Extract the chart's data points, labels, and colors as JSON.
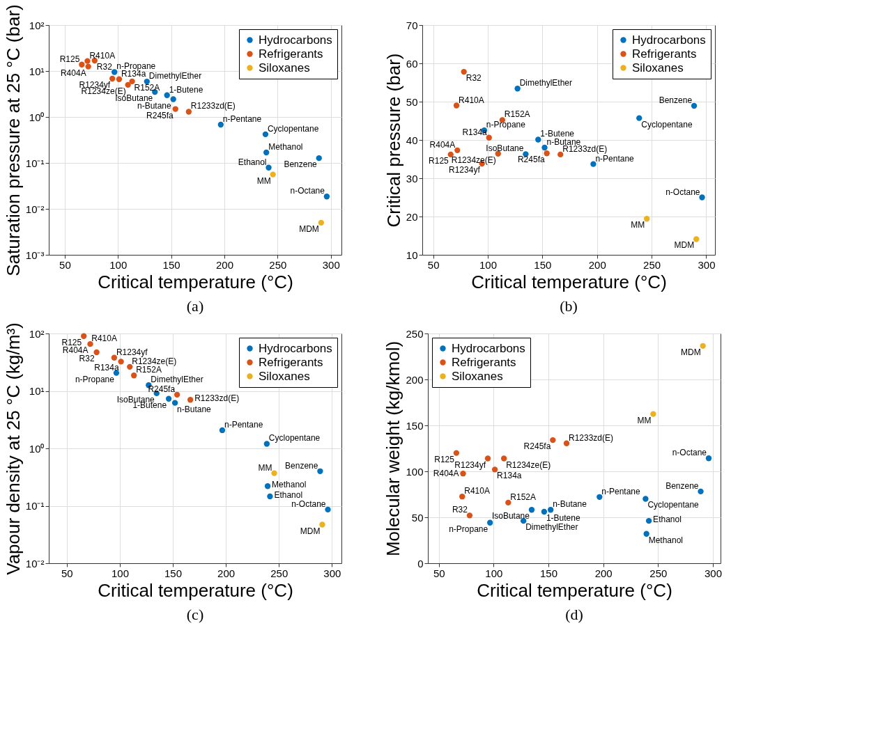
{
  "chart_data": [
    {
      "type": "scatter",
      "xlabel": "Critical temperature (°C)",
      "ylabel": "Saturation pressure at 25 °C (bar)",
      "log": "y",
      "xlim": [
        35,
        310
      ],
      "xticks": [
        50,
        100,
        150,
        200,
        250,
        300
      ],
      "ylim": [
        0.001,
        100
      ],
      "yticks": [
        {
          "value": 0.001,
          "label": "10⁻³"
        },
        {
          "value": 0.01,
          "label": "10⁻²"
        },
        {
          "value": 0.1,
          "label": "10⁻¹"
        },
        {
          "value": 1,
          "label": "10⁰"
        },
        {
          "value": 10,
          "label": "10¹"
        },
        {
          "value": 100,
          "label": "10²"
        }
      ],
      "grid": true,
      "legend": "top right",
      "marker": "circle",
      "series": [
        {
          "name": "Hydrocarbons",
          "color": "#0072bd",
          "x": [
            96.7,
            127.2,
            134.7,
            146.1,
            152.0,
            196.6,
            238.6,
            239.4,
            241.6,
            288.9,
            296.2
          ],
          "values": [
            9.5,
            5.9,
            3.5,
            2.97,
            2.43,
            0.68,
            0.42,
            0.169,
            0.079,
            0.127,
            0.0186
          ]
        },
        {
          "name": "Refrigerants",
          "color": "#d95319",
          "x": [
            66.0,
            71.3,
            72.1,
            78.1,
            94.7,
            101.1,
            109.4,
            113.3,
            154.0,
            166.5
          ],
          "values": [
            13.8,
            16.5,
            12.5,
            16.9,
            6.8,
            6.65,
            5.0,
            5.96,
            1.49,
            1.3
          ]
        },
        {
          "name": "Siloxanes",
          "color": "#edb120",
          "x": [
            245.6,
            290.9
          ],
          "values": [
            0.056,
            0.005
          ]
        }
      ],
      "annotations": [
        {
          "text": "n-Propane",
          "x": 96.7,
          "y": 9.5
        },
        {
          "text": "DimethylEther",
          "x": 127.2,
          "y": 5.9
        },
        {
          "text": "IsoButane",
          "x": 134.7,
          "y": 3.5
        },
        {
          "text": "1-Butene",
          "x": 146.1,
          "y": 2.97
        },
        {
          "text": "n-Butane",
          "x": 152.0,
          "y": 2.43
        },
        {
          "text": "n-Pentane",
          "x": 196.6,
          "y": 0.68
        },
        {
          "text": "Cyclopentane",
          "x": 238.6,
          "y": 0.42
        },
        {
          "text": "Methanol",
          "x": 239.4,
          "y": 0.169
        },
        {
          "text": "Ethanol",
          "x": 241.6,
          "y": 0.079
        },
        {
          "text": "Benzene",
          "x": 288.9,
          "y": 0.127
        },
        {
          "text": "n-Octane",
          "x": 296.2,
          "y": 0.0186
        },
        {
          "text": "R125",
          "x": 66.0,
          "y": 13.8
        },
        {
          "text": "R410A",
          "x": 71.3,
          "y": 16.5
        },
        {
          "text": "R404A",
          "x": 72.1,
          "y": 12.5
        },
        {
          "text": "R32",
          "x": 78.1,
          "y": 16.9
        },
        {
          "text": "R1234yf",
          "x": 94.7,
          "y": 6.8
        },
        {
          "text": "R134a",
          "x": 101.1,
          "y": 6.65
        },
        {
          "text": "R1234ze(E)",
          "x": 109.4,
          "y": 5.0
        },
        {
          "text": "R152A",
          "x": 113.3,
          "y": 5.96
        },
        {
          "text": "R245fa",
          "x": 154.0,
          "y": 1.49
        },
        {
          "text": "R1233zd(E)",
          "x": 166.5,
          "y": 1.3
        },
        {
          "text": "MM",
          "x": 245.6,
          "y": 0.056
        },
        {
          "text": "MDM",
          "x": 290.9,
          "y": 0.005
        },
        "(a)"
      ]
    },
    {
      "type": "scatter",
      "xlabel": "Critical temperature (°C)",
      "ylabel": "Critical pressure (bar)",
      "xlim": [
        40,
        308
      ],
      "xticks": [
        50,
        100,
        150,
        200,
        250,
        300
      ],
      "ylim": [
        10,
        70
      ],
      "yticks": [
        10,
        20,
        30,
        40,
        50,
        60,
        70
      ],
      "grid": true,
      "legend": "top right",
      "marker": "circle",
      "series": [
        {
          "name": "Hydrocarbons",
          "color": "#0072bd",
          "x": [
            96.7,
            127.2,
            134.7,
            146.1,
            152.0,
            196.6,
            238.6,
            288.9,
            296.2
          ],
          "values": [
            42.5,
            53.4,
            36.3,
            40.1,
            38.0,
            33.7,
            45.7,
            48.9,
            25.0
          ]
        },
        {
          "name": "Refrigerants",
          "color": "#d95319",
          "x": [
            66.0,
            71.3,
            72.1,
            78.1,
            94.7,
            101.1,
            109.4,
            113.3,
            154.0,
            166.5
          ],
          "values": [
            36.2,
            49.0,
            37.3,
            57.8,
            33.8,
            40.6,
            36.4,
            45.2,
            36.5,
            36.2
          ]
        },
        {
          "name": "Siloxanes",
          "color": "#edb120",
          "x": [
            245.6,
            290.9
          ],
          "values": [
            19.4,
            14.1
          ]
        }
      ],
      "annotations": [
        {
          "text": "n-Propane",
          "x": 96.7,
          "y": 42.5
        },
        {
          "text": "DimethylEther",
          "x": 127.2,
          "y": 53.4
        },
        {
          "text": "IsoButane",
          "x": 134.7,
          "y": 36.3
        },
        {
          "text": "1-Butene",
          "x": 146.1,
          "y": 40.1
        },
        {
          "text": "n-Butane",
          "x": 152.0,
          "y": 38.0
        },
        {
          "text": "n-Pentane",
          "x": 196.6,
          "y": 33.7
        },
        {
          "text": "Cyclopentane",
          "x": 238.6,
          "y": 45.7
        },
        {
          "text": "Benzene",
          "x": 288.9,
          "y": 48.9
        },
        {
          "text": "n-Octane",
          "x": 296.2,
          "y": 25.0
        },
        {
          "text": "R125",
          "x": 66.0,
          "y": 36.2
        },
        {
          "text": "R410A",
          "x": 71.3,
          "y": 49.0
        },
        {
          "text": "R404A",
          "x": 72.1,
          "y": 37.3
        },
        {
          "text": "R32",
          "x": 78.1,
          "y": 57.8
        },
        {
          "text": "R1234yf",
          "x": 94.7,
          "y": 33.8
        },
        {
          "text": "R134a",
          "x": 101.1,
          "y": 40.6
        },
        {
          "text": "R1234ze(E)",
          "x": 109.4,
          "y": 36.4
        },
        {
          "text": "R152A",
          "x": 113.3,
          "y": 45.2
        },
        {
          "text": "R245fa",
          "x": 154.0,
          "y": 36.5
        },
        {
          "text": "R1233zd(E)",
          "x": 166.5,
          "y": 36.2
        },
        {
          "text": "MM",
          "x": 245.6,
          "y": 19.4
        },
        {
          "text": "MDM",
          "x": 290.9,
          "y": 14.1
        },
        "(b)"
      ]
    },
    {
      "type": "scatter",
      "xlabel": "Critical temperature (°C)",
      "ylabel": "Vapour density at 25 °C (kg/m³)",
      "log": "y",
      "xlim": [
        33,
        309
      ],
      "xticks": [
        50,
        100,
        150,
        200,
        250,
        300
      ],
      "ylim": [
        0.01,
        100
      ],
      "yticks": [
        {
          "value": 0.01,
          "label": "10⁻²"
        },
        {
          "value": 0.1,
          "label": "10⁻¹"
        },
        {
          "value": 1,
          "label": "10⁰"
        },
        {
          "value": 10,
          "label": "10¹"
        },
        {
          "value": 100,
          "label": "10²"
        }
      ],
      "grid": true,
      "legend": "top right",
      "marker": "circle",
      "series": [
        {
          "name": "Hydrocarbons",
          "color": "#0072bd",
          "x": [
            96.7,
            127.2,
            134.7,
            146.1,
            152.0,
            196.6,
            238.6,
            239.4,
            241.6,
            288.9,
            296.2
          ],
          "values": [
            20.6,
            12.6,
            9.1,
            7.3,
            6.2,
            2.07,
            1.2,
            0.22,
            0.146,
            0.4,
            0.086
          ]
        },
        {
          "name": "Refrigerants",
          "color": "#d95319",
          "x": [
            66.0,
            71.3,
            72.1,
            78.1,
            94.7,
            101.1,
            109.4,
            113.3,
            154.0,
            166.5
          ],
          "values": [
            90,
            null,
            65.5,
            47,
            37.9,
            32.4,
            26.3,
            18.6,
            8.6,
            7.0
          ]
        },
        {
          "name": "Siloxanes",
          "color": "#edb120",
          "x": [
            245.6,
            290.9
          ],
          "values": [
            0.37,
            0.047
          ]
        }
      ],
      "annotations": [
        {
          "text": "n-Propane",
          "x": 96.7,
          "y": 20.6
        },
        {
          "text": "DimethylEther",
          "x": 127.2,
          "y": 12.6
        },
        {
          "text": "IsoButane",
          "x": 134.7,
          "y": 9.1
        },
        {
          "text": "1-Butene",
          "x": 146.1,
          "y": 7.3
        },
        {
          "text": "n-Butane",
          "x": 152.0,
          "y": 6.2
        },
        {
          "text": "n-Pentane",
          "x": 196.6,
          "y": 2.07
        },
        {
          "text": "Cyclopentane",
          "x": 238.6,
          "y": 1.2
        },
        {
          "text": "Methanol",
          "x": 239.4,
          "y": 0.22
        },
        {
          "text": "Ethanol",
          "x": 241.6,
          "y": 0.146
        },
        {
          "text": "Benzene",
          "x": 288.9,
          "y": 0.4
        },
        {
          "text": "n-Octane",
          "x": 296.2,
          "y": 0.086
        },
        {
          "text": "R125",
          "x": 66.0,
          "y": 90
        },
        {
          "text": "R410A",
          "x": 71.3,
          "y": 65
        },
        {
          "text": "R404A",
          "x": 72.1,
          "y": 65.5
        },
        {
          "text": "R32",
          "x": 78.1,
          "y": 47
        },
        {
          "text": "R1234yf",
          "x": 94.7,
          "y": 37.9
        },
        {
          "text": "R134a",
          "x": 101.1,
          "y": 32.4
        },
        {
          "text": "R1234ze(E)",
          "x": 109.4,
          "y": 26.3
        },
        {
          "text": "R152A",
          "x": 113.3,
          "y": 18.6
        },
        {
          "text": "R245fa",
          "x": 154.0,
          "y": 8.6
        },
        {
          "text": "R1233zd(E)",
          "x": 166.5,
          "y": 7.0
        },
        {
          "text": "MM",
          "x": 245.6,
          "y": 0.37
        },
        {
          "text": "MDM",
          "x": 290.9,
          "y": 0.047
        },
        "(c)"
      ]
    },
    {
      "type": "scatter",
      "xlabel": "Critical temperature (°C)",
      "ylabel": "Molecular weight (kg/kmol)",
      "xlim": [
        40,
        307
      ],
      "xticks": [
        50,
        100,
        150,
        200,
        250,
        300
      ],
      "ylim": [
        0,
        250
      ],
      "yticks": [
        0,
        50,
        100,
        150,
        200,
        250
      ],
      "grid": true,
      "legend": "top left",
      "marker": "circle",
      "series": [
        {
          "name": "Hydrocarbons",
          "color": "#0072bd",
          "x": [
            96.7,
            127.2,
            134.7,
            146.1,
            152.0,
            196.6,
            238.6,
            239.4,
            241.6,
            288.9,
            296.2
          ],
          "values": [
            44.1,
            46.1,
            58.1,
            56.1,
            58.1,
            72.1,
            70.1,
            32.0,
            46.1,
            78.1,
            114.2
          ]
        },
        {
          "name": "Refrigerants",
          "color": "#d95319",
          "x": [
            66.0,
            71.3,
            72.1,
            78.1,
            94.7,
            101.1,
            109.4,
            113.3,
            154.0,
            166.5
          ],
          "values": [
            120.0,
            72.6,
            97.6,
            52.0,
            114.0,
            102.0,
            114.0,
            66.0,
            134.0,
            130.5
          ]
        },
        {
          "name": "Siloxanes",
          "color": "#edb120",
          "x": [
            245.6,
            290.9
          ],
          "values": [
            162.4,
            236.5
          ]
        }
      ],
      "annotations": [
        {
          "text": "n-Propane",
          "x": 96.7,
          "y": 44.1
        },
        {
          "text": "DimethylEther",
          "x": 127.2,
          "y": 46.1
        },
        {
          "text": "IsoButane",
          "x": 134.7,
          "y": 58.1
        },
        {
          "text": "1-Butene",
          "x": 146.1,
          "y": 56.1
        },
        {
          "text": "n-Butane",
          "x": 152.0,
          "y": 58.1
        },
        {
          "text": "n-Pentane",
          "x": 196.6,
          "y": 72.1
        },
        {
          "text": "Cyclopentane",
          "x": 238.6,
          "y": 70.1
        },
        {
          "text": "Methanol",
          "x": 239.4,
          "y": 32.0
        },
        {
          "text": "Ethanol",
          "x": 241.6,
          "y": 46.1
        },
        {
          "text": "Benzene",
          "x": 288.9,
          "y": 78.1
        },
        {
          "text": "n-Octane",
          "x": 296.2,
          "y": 114.2
        },
        {
          "text": "R125",
          "x": 66.0,
          "y": 120.0
        },
        {
          "text": "R410A",
          "x": 71.3,
          "y": 72.6
        },
        {
          "text": "R404A",
          "x": 72.1,
          "y": 97.6
        },
        {
          "text": "R32",
          "x": 78.1,
          "y": 52.0
        },
        {
          "text": "R1234yf",
          "x": 94.7,
          "y": 114.0
        },
        {
          "text": "R134a",
          "x": 101.1,
          "y": 102.0
        },
        {
          "text": "R1234ze(E)",
          "x": 109.4,
          "y": 114.0
        },
        {
          "text": "R152A",
          "x": 113.3,
          "y": 66.0
        },
        {
          "text": "R245fa",
          "x": 154.0,
          "y": 134.0
        },
        {
          "text": "R1233zd(E)",
          "x": 166.5,
          "y": 130.5
        },
        {
          "text": "MM",
          "x": 245.6,
          "y": 162.4
        },
        {
          "text": "MDM",
          "x": 290.9,
          "y": 236.5
        },
        "(d)"
      ]
    }
  ]
}
